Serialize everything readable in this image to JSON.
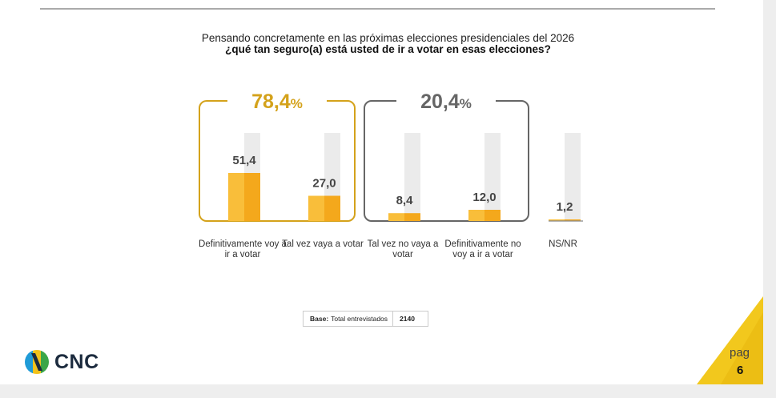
{
  "question": {
    "line1": "Pensando concretamente en las próximas elecciones presidenciales del 2026",
    "line2": "¿qué tan seguro(a) está usted de ir a votar en esas elecciones?"
  },
  "colors": {
    "gold": "#d4a21b",
    "bar": "#f4a81c",
    "bar_light": "#f9be3a",
    "track": "#ebebeb",
    "gray_box": "#666666"
  },
  "chart_data": {
    "type": "bar",
    "title": "¿qué tan seguro(a) está usted de ir a votar en esas elecciones?",
    "categories": [
      "Definitivamente voy a ir a votar",
      "Tal vez vaya a votar",
      "Tal vez no vaya a votar",
      "Definitivamente no voy a ir a votar",
      "NS/NR"
    ],
    "values": [
      51.4,
      27.0,
      8.4,
      12.0,
      1.2
    ],
    "value_labels": [
      "51,4",
      "27,0",
      "8,4",
      "12,0",
      "1,2"
    ],
    "ylim": [
      0,
      100
    ],
    "groups": [
      {
        "label": "78,4",
        "unit": "%",
        "members": [
          0,
          1
        ],
        "color": "gold"
      },
      {
        "label": "20,4",
        "unit": "%",
        "members": [
          2,
          3
        ],
        "color": "gray"
      }
    ]
  },
  "base": {
    "label": "Base:",
    "text": "Total entrevistados",
    "value": "2140"
  },
  "brand": {
    "name": "CNC"
  },
  "page": {
    "label": "pag",
    "number": "6"
  }
}
